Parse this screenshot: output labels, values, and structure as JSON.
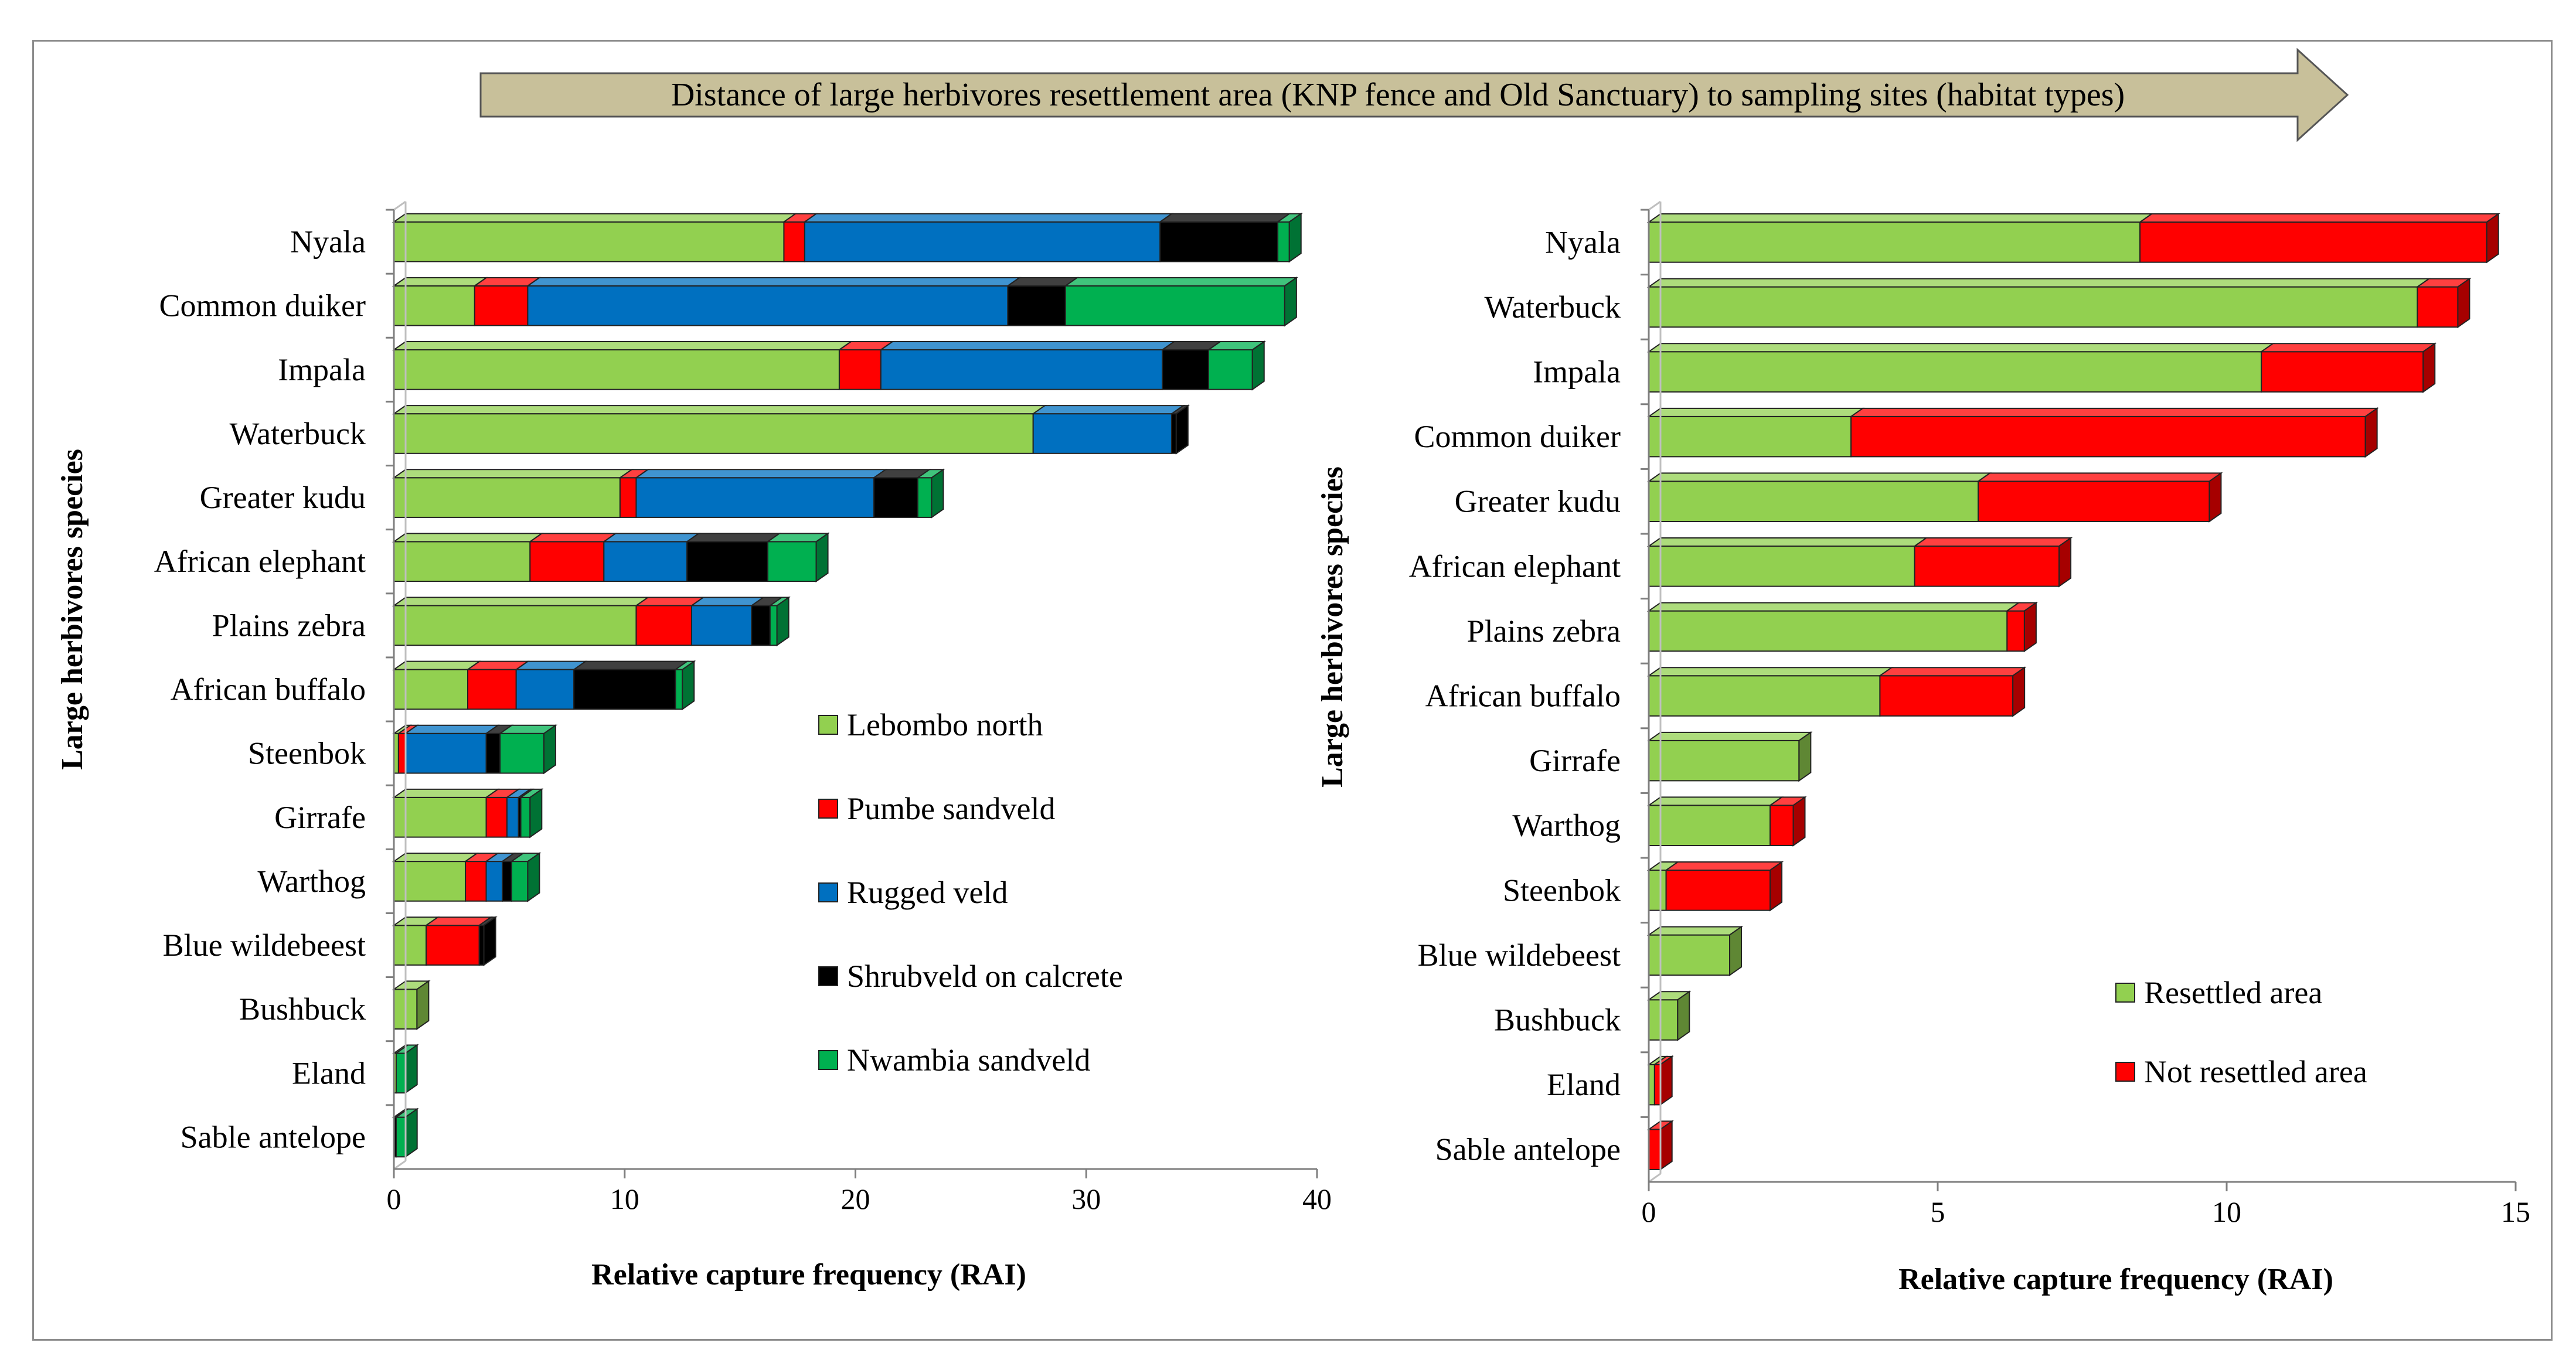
{
  "banner": {
    "text": "Distance of large herbivores resettlement area (KNP fence and Old Sanctuary) to sampling sites (habitat types)",
    "color": "#c8c09a"
  },
  "colors": {
    "Lebombo north": "#92d050",
    "Pumbe sandveld": "#ff0000",
    "Rugged veld": "#0070c0",
    "Shrubveld on calcrete": "#000000",
    "Nwambia sandveld": "#00b050",
    "Resettled area": "#92d050",
    "Not resettled area": "#ff0000"
  },
  "chart_data": [
    {
      "type": "bar",
      "orientation": "horizontal",
      "stacked": true,
      "xlabel": "Relative capture frequency (RAI)",
      "ylabel": "Large herbivores species",
      "xlim": [
        0,
        40
      ],
      "xticks": [
        0,
        10,
        20,
        30,
        40
      ],
      "legend_position": "center-right",
      "categories": [
        "Nyala",
        "Common duiker",
        "Impala",
        "Waterbuck",
        "Greater kudu",
        "African elephant",
        "Plains zebra",
        "African buffalo",
        "Steenbok",
        "Girrafe",
        "Warthog",
        "Blue wildebeest",
        "Bushbuck",
        "Eland",
        "Sable antelope"
      ],
      "series": [
        {
          "name": "Lebombo north",
          "values": [
            16.9,
            3.5,
            19.3,
            27.7,
            9.8,
            5.9,
            10.5,
            3.2,
            0.2,
            4.0,
            3.1,
            1.4,
            1.0,
            0.1,
            0.0
          ]
        },
        {
          "name": "Pumbe sandveld",
          "values": [
            0.9,
            2.3,
            1.8,
            0.0,
            0.7,
            3.2,
            2.4,
            2.1,
            0.3,
            0.9,
            0.9,
            2.3,
            0.0,
            0.0,
            0.0
          ]
        },
        {
          "name": "Rugged veld",
          "values": [
            15.4,
            20.8,
            12.2,
            6.0,
            10.3,
            3.6,
            2.6,
            2.5,
            3.5,
            0.5,
            0.7,
            0.0,
            0.0,
            0.0,
            0.0
          ]
        },
        {
          "name": "Shrubveld on calcrete",
          "values": [
            5.1,
            2.5,
            2.0,
            0.2,
            1.9,
            3.5,
            0.8,
            4.4,
            0.6,
            0.1,
            0.4,
            0.2,
            0.0,
            0.0,
            0.1
          ]
        },
        {
          "name": "Nwambia sandveld",
          "values": [
            0.5,
            9.5,
            1.9,
            0.0,
            0.6,
            2.1,
            0.3,
            0.3,
            1.9,
            0.4,
            0.7,
            0.0,
            0.0,
            0.4,
            0.4
          ]
        }
      ]
    },
    {
      "type": "bar",
      "orientation": "horizontal",
      "stacked": true,
      "xlabel": "Relative capture frequency (RAI)",
      "ylabel": "Large herbivores species",
      "xlim": [
        0,
        15
      ],
      "xticks": [
        0,
        5,
        10,
        15
      ],
      "legend_position": "bottom-right",
      "categories": [
        "Nyala",
        "Waterbuck",
        "Impala",
        "Common duiker",
        "Greater kudu",
        "African elephant",
        "Plains zebra",
        "African buffalo",
        "Girrafe",
        "Warthog",
        "Steenbok",
        "Blue wildebeest",
        "Bushbuck",
        "Eland",
        "Sable antelope"
      ],
      "series": [
        {
          "name": "Resettled area",
          "values": [
            8.5,
            13.3,
            10.6,
            3.5,
            5.7,
            4.6,
            6.2,
            4.0,
            2.6,
            2.1,
            0.3,
            1.4,
            0.5,
            0.1,
            0.0
          ]
        },
        {
          "name": "Not resettled area",
          "values": [
            6.0,
            0.7,
            2.8,
            8.9,
            4.0,
            2.5,
            0.3,
            2.3,
            0.0,
            0.4,
            1.8,
            0.0,
            0.0,
            0.1,
            0.2
          ]
        }
      ]
    }
  ]
}
